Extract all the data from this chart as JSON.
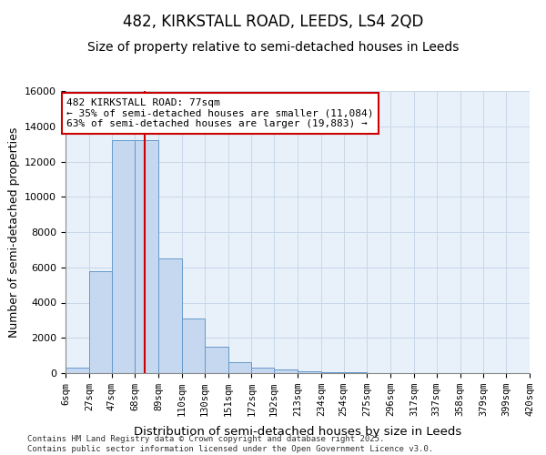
{
  "title": "482, KIRKSTALL ROAD, LEEDS, LS4 2QD",
  "subtitle": "Size of property relative to semi-detached houses in Leeds",
  "xlabel": "Distribution of semi-detached houses by size in Leeds",
  "ylabel": "Number of semi-detached properties",
  "footer_line1": "Contains HM Land Registry data © Crown copyright and database right 2025.",
  "footer_line2": "Contains public sector information licensed under the Open Government Licence v3.0.",
  "annotation_title": "482 KIRKSTALL ROAD: 77sqm",
  "annotation_line1": "← 35% of semi-detached houses are smaller (11,084)",
  "annotation_line2": "63% of semi-detached houses are larger (19,883) →",
  "property_size": 77,
  "bin_edges": [
    6,
    27,
    47,
    68,
    89,
    110,
    130,
    151,
    172,
    192,
    213,
    234,
    254,
    275,
    296,
    317,
    337,
    358,
    379,
    399,
    420
  ],
  "bin_labels": [
    "6sqm",
    "27sqm",
    "47sqm",
    "68sqm",
    "89sqm",
    "110sqm",
    "130sqm",
    "151sqm",
    "172sqm",
    "192sqm",
    "213sqm",
    "234sqm",
    "254sqm",
    "275sqm",
    "296sqm",
    "317sqm",
    "337sqm",
    "358sqm",
    "379sqm",
    "399sqm",
    "420sqm"
  ],
  "bar_heights": [
    300,
    5800,
    13200,
    13200,
    6500,
    3100,
    1500,
    600,
    300,
    200,
    100,
    50,
    30,
    15,
    8,
    5,
    3,
    2,
    1,
    1
  ],
  "bar_color": "#c5d8f0",
  "bar_edge_color": "#6699cc",
  "vline_color": "#cc0000",
  "vline_x": 77,
  "annotation_box_color": "#cc0000",
  "ylim": [
    0,
    16000
  ],
  "yticks": [
    0,
    2000,
    4000,
    6000,
    8000,
    10000,
    12000,
    14000,
    16000
  ],
  "grid_color": "#c8d8e8",
  "background_color": "#e8f0fa",
  "title_fontsize": 12,
  "subtitle_fontsize": 10
}
